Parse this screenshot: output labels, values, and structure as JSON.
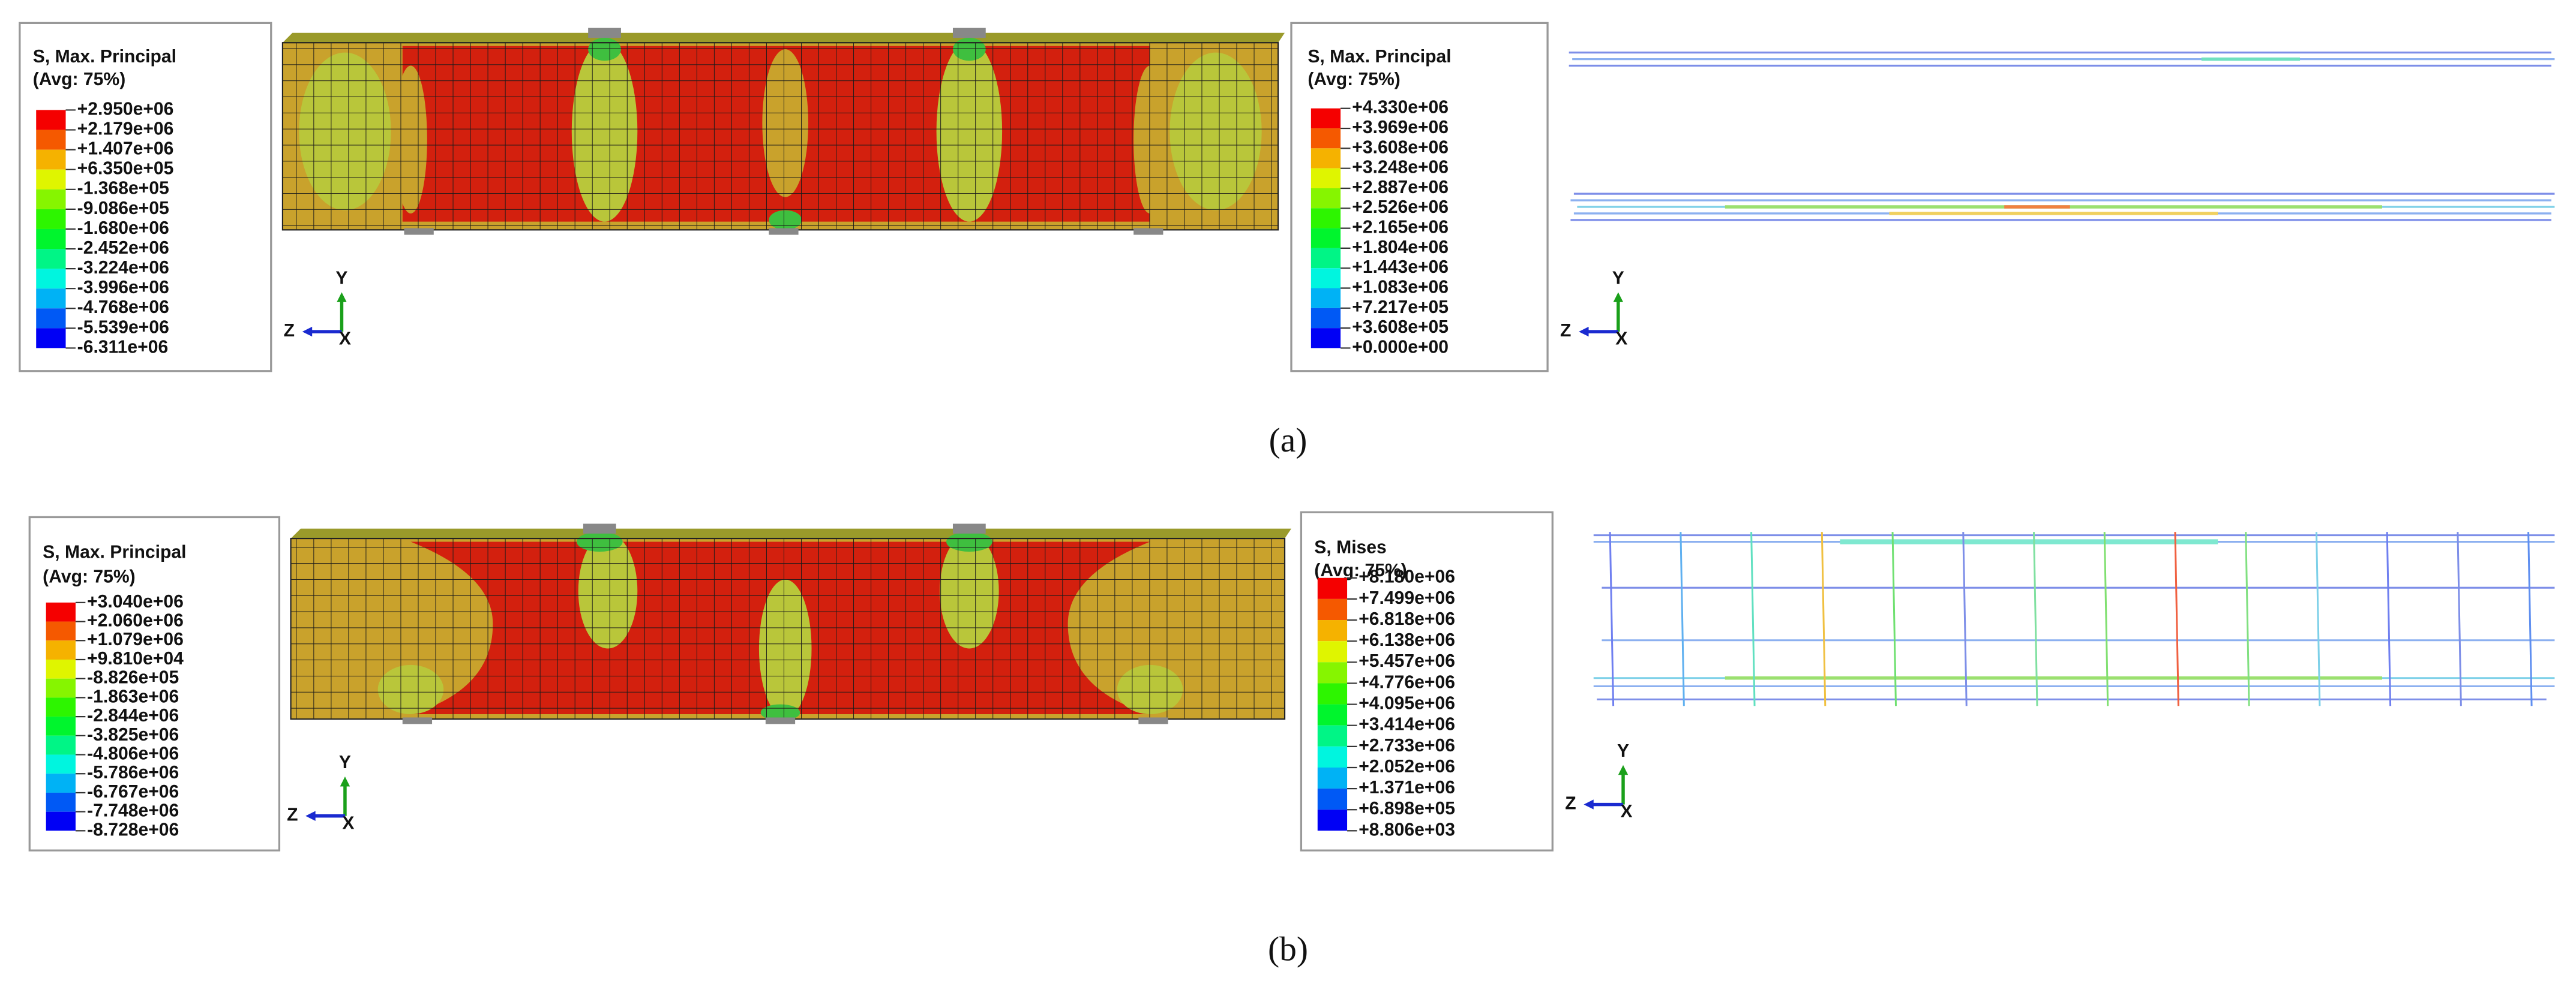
{
  "panels": [
    {
      "label": "(a)",
      "plots": [
        {
          "legend": {
            "title": "S, Max. Principal",
            "subtitle": "(Avg: 75%)",
            "labels": [
              "+2.950e+06",
              "+2.179e+06",
              "+1.407e+06",
              "+6.350e+05",
              "-1.368e+05",
              "-9.086e+05",
              "-1.680e+06",
              "-2.452e+06",
              "-3.224e+06",
              "-3.996e+06",
              "-4.768e+06",
              "-5.539e+06",
              "-6.311e+06"
            ]
          },
          "axes": {
            "y": "Y",
            "z": "Z",
            "x": "X"
          }
        },
        {
          "legend": {
            "title": "S, Max. Principal",
            "subtitle": "(Avg: 75%)",
            "labels": [
              "+4.330e+06",
              "+3.969e+06",
              "+3.608e+06",
              "+3.248e+06",
              "+2.887e+06",
              "+2.526e+06",
              "+2.165e+06",
              "+1.804e+06",
              "+1.443e+06",
              "+1.083e+06",
              "+7.217e+05",
              "+3.608e+05",
              "+0.000e+00"
            ]
          },
          "axes": {
            "y": "Y",
            "z": "Z",
            "x": "X"
          }
        }
      ]
    },
    {
      "label": "(b)",
      "plots": [
        {
          "legend": {
            "title": "S, Max. Principal",
            "subtitle": "(Avg: 75%)",
            "labels": [
              "+3.040e+06",
              "+2.060e+06",
              "+1.079e+06",
              "+9.810e+04",
              "-8.826e+05",
              "-1.863e+06",
              "-2.844e+06",
              "-3.825e+06",
              "-4.806e+06",
              "-5.786e+06",
              "-6.767e+06",
              "-7.748e+06",
              "-8.728e+06"
            ]
          },
          "axes": {
            "y": "Y",
            "z": "Z",
            "x": "X"
          }
        },
        {
          "legend": {
            "title": "S, Mises",
            "subtitle": "(Avg: 75%)",
            "labels": [
              "+8.180e+06",
              "+7.499e+06",
              "+6.818e+06",
              "+6.138e+06",
              "+5.457e+06",
              "+4.776e+06",
              "+4.095e+06",
              "+3.414e+06",
              "+2.733e+06",
              "+2.052e+06",
              "+1.371e+06",
              "+6.898e+05",
              "+8.806e+03"
            ]
          },
          "axes": {
            "y": "Y",
            "z": "Z",
            "x": "X"
          }
        }
      ]
    }
  ]
}
